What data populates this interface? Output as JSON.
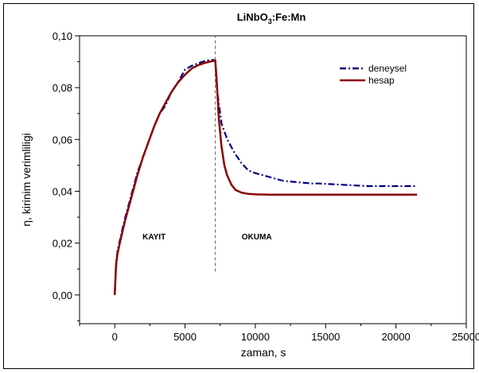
{
  "chart_data": {
    "type": "line",
    "title": "LiNbO",
    "title_sub": "3",
    "title_rest": ":Fe:Mn",
    "xlabel": "zaman, s",
    "ylabel": "η, kirinim verimliligi",
    "xlim": [
      -2500,
      25000
    ],
    "ylim": [
      -0.0111,
      0.1
    ],
    "x_ticks": [
      0,
      5000,
      10000,
      15000,
      20000,
      25000
    ],
    "x_tick_labels": [
      "0",
      "5000",
      "10000",
      "15000",
      "20000",
      "25000"
    ],
    "y_ticks": [
      0.0,
      0.02,
      0.04,
      0.06,
      0.08,
      0.1
    ],
    "y_tick_labels": [
      "0,00",
      "0,02",
      "0,04",
      "0,06",
      "0,08",
      "0,10"
    ],
    "grid": false,
    "legend_position": "top-right",
    "annotations": [
      {
        "text": "KAYIT",
        "x": 2800,
        "y": 0.0215
      },
      {
        "text": "OKUMA",
        "x": 10100,
        "y": 0.0215
      }
    ],
    "vline": {
      "x": 7150,
      "y_from": 0.009,
      "y_to": 0.1
    },
    "series": [
      {
        "name": "deneysel",
        "color": "#000080",
        "style": "dashdot",
        "x": [
          0,
          100,
          200,
          400,
          700,
          1000,
          1300,
          1600,
          2000,
          2400,
          2800,
          3200,
          3600,
          4000,
          4500,
          5000,
          5500,
          6000,
          6500,
          7000,
          7150,
          7300,
          7600,
          8000,
          8500,
          9000,
          9500,
          10000,
          11000,
          12000,
          13000,
          14000,
          14500,
          18000,
          19000,
          20000,
          21000,
          21500
        ],
        "y": [
          0.0,
          0.011,
          0.017,
          0.022,
          0.029,
          0.035,
          0.041,
          0.047,
          0.053,
          0.059,
          0.065,
          0.07,
          0.073,
          0.078,
          0.082,
          0.087,
          0.0885,
          0.0895,
          0.0905,
          0.0907,
          0.0905,
          0.078,
          0.066,
          0.06,
          0.055,
          0.051,
          0.048,
          0.047,
          0.0455,
          0.044,
          0.0435,
          0.043,
          0.043,
          0.042,
          0.042,
          0.042,
          0.042,
          0.042
        ]
      },
      {
        "name": "hesap",
        "color": "#8b0000",
        "style": "solid",
        "x": [
          0,
          100,
          200,
          400,
          700,
          1000,
          1300,
          1600,
          2000,
          2400,
          2800,
          3200,
          3600,
          4000,
          4500,
          5000,
          5500,
          6000,
          6500,
          7000,
          7150,
          7250,
          7400,
          7600,
          7800,
          8000,
          8300,
          8600,
          9000,
          9500,
          10000,
          11000,
          12000,
          14000,
          16000,
          18000,
          20000,
          21500
        ],
        "y": [
          0.0,
          0.012,
          0.016,
          0.021,
          0.028,
          0.034,
          0.04,
          0.046,
          0.053,
          0.059,
          0.065,
          0.07,
          0.074,
          0.078,
          0.082,
          0.085,
          0.0875,
          0.0888,
          0.0897,
          0.0903,
          0.0905,
          0.083,
          0.068,
          0.057,
          0.05,
          0.046,
          0.0425,
          0.0405,
          0.0395,
          0.039,
          0.0388,
          0.0387,
          0.0387,
          0.0387,
          0.0387,
          0.0387,
          0.0387,
          0.0387
        ]
      }
    ]
  }
}
